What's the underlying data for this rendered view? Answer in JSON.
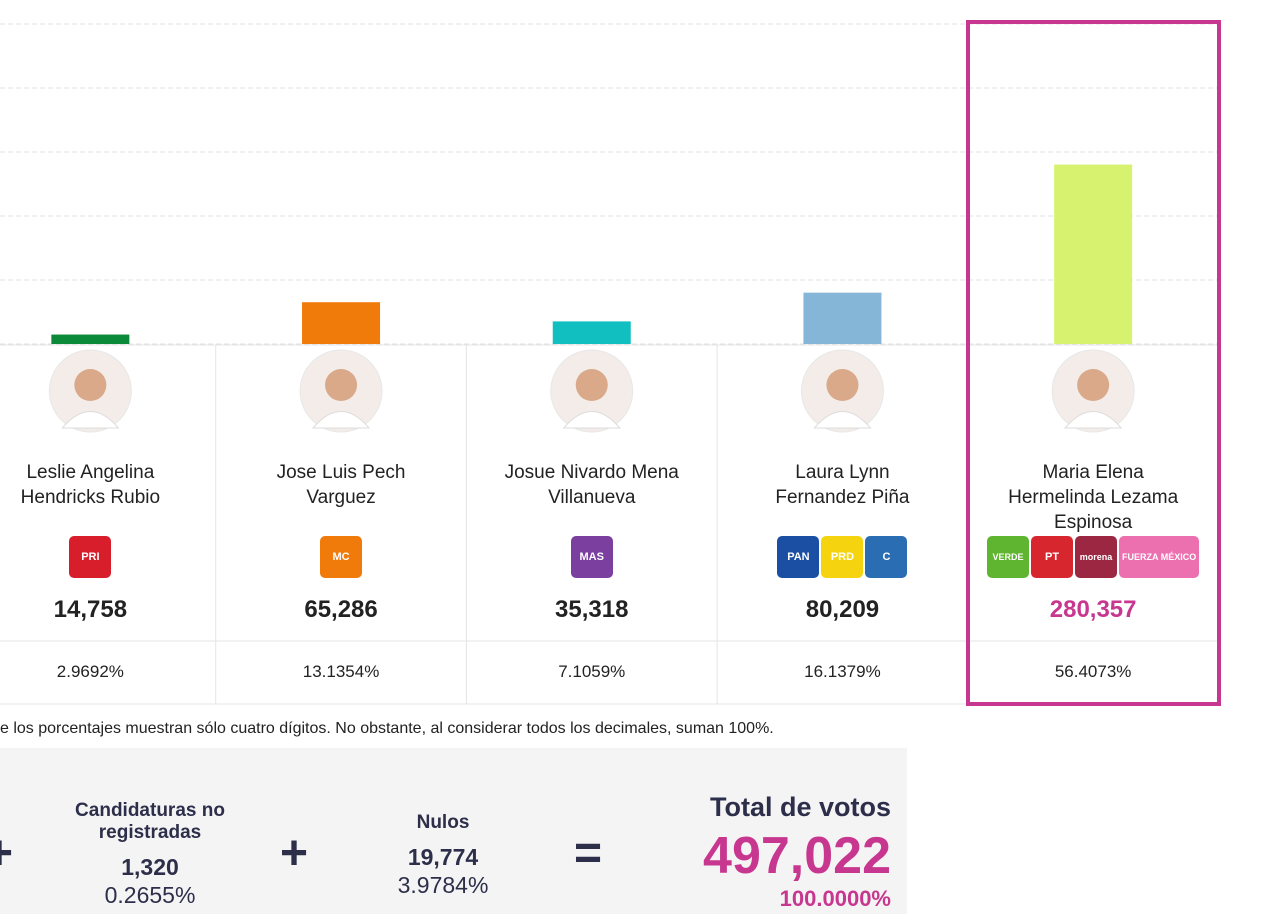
{
  "chart_data": {
    "type": "bar",
    "ylim": [
      0,
      500000
    ],
    "yticks": [
      0,
      100000,
      200000,
      300000,
      400000,
      500000
    ],
    "grid": true,
    "candidates": [
      {
        "name": "Leslie Angelina Hendricks Rubio",
        "votes": 14758,
        "vote_label": "14,758",
        "percent": "2.9692%",
        "color": "#0b8a3a",
        "parties": [
          {
            "label": "PRI",
            "color": "#d81e2b"
          }
        ]
      },
      {
        "name": "Jose Luis Pech Varguez",
        "votes": 65286,
        "vote_label": "65,286",
        "percent": "13.1354%",
        "color": "#f07a0a",
        "parties": [
          {
            "label": "MC",
            "color": "#f07a0a"
          }
        ]
      },
      {
        "name": "Josue Nivardo Mena Villanueva",
        "votes": 35318,
        "vote_label": "35,318",
        "percent": "7.1059%",
        "color": "#12bfc0",
        "parties": [
          {
            "label": "MAS",
            "color": "#7b3fa0"
          }
        ]
      },
      {
        "name": "Laura Lynn Fernandez Piña",
        "votes": 80209,
        "vote_label": "80,209",
        "percent": "16.1379%",
        "color": "#85b6d8",
        "parties": [
          {
            "label": "PAN",
            "color": "#1a4fa3"
          },
          {
            "label": "PRD",
            "color": "#f5d40f"
          },
          {
            "label": "C",
            "color": "#2b6db2"
          }
        ]
      },
      {
        "name": "Maria Elena Hermelinda Lezama Espinosa",
        "votes": 280357,
        "vote_label": "280,357",
        "percent": "56.4073%",
        "color": "#d6f26e",
        "highlight": true,
        "parties": [
          {
            "label": "VERDE",
            "color": "#5fb530"
          },
          {
            "label": "PT",
            "color": "#d8262f"
          },
          {
            "label": "morena",
            "color": "#9b2743"
          },
          {
            "label": "FUERZA MÉXICO",
            "color": "#ec6fb0"
          }
        ]
      }
    ]
  },
  "note": "e los porcentajes muestran sólo cuatro dígitos. No obstante, al considerar todos los decimales, suman 100%.",
  "summary": {
    "plus": "+",
    "equals": "=",
    "unregistered": {
      "label": "Candidaturas no registradas",
      "votes": "1,320",
      "percent": "0.2655%"
    },
    "null": {
      "label": "Nulos",
      "votes": "19,774",
      "percent": "3.9784%"
    },
    "total": {
      "label": "Total de votos",
      "votes": "497,022",
      "percent": "100.0000%"
    }
  }
}
